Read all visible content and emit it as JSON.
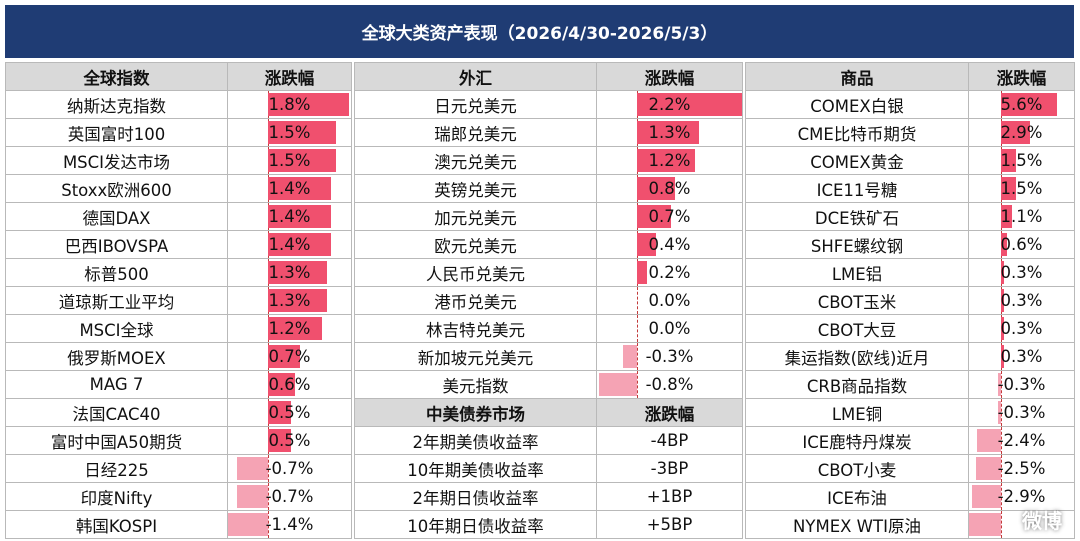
{
  "title": "全球大类资产表现（2026/4/30-2026/5/3）",
  "colors": {
    "header_bg": "#1f3c74",
    "positive_bar": "#f0506e",
    "negative_bar": "#f5a3b4",
    "zero_line": "#c23a3a",
    "col_header_bg": "#d9d9d9"
  },
  "indices": {
    "header": {
      "name": "全球指数",
      "change": "涨跌幅"
    },
    "rows": [
      {
        "name": "纳斯达克指数",
        "change": "1.8%",
        "value": 1.8
      },
      {
        "name": "英国富时100",
        "change": "1.5%",
        "value": 1.5
      },
      {
        "name": "MSCI发达市场",
        "change": "1.5%",
        "value": 1.5
      },
      {
        "name": "Stoxx欧洲600",
        "change": "1.4%",
        "value": 1.4
      },
      {
        "name": "德国DAX",
        "change": "1.4%",
        "value": 1.4
      },
      {
        "name": "巴西IBOVSPA",
        "change": "1.4%",
        "value": 1.4
      },
      {
        "name": "标普500",
        "change": "1.3%",
        "value": 1.3
      },
      {
        "name": "道琼斯工业平均",
        "change": "1.3%",
        "value": 1.3
      },
      {
        "name": "MSCI全球",
        "change": "1.2%",
        "value": 1.2
      },
      {
        "name": "俄罗斯MOEX",
        "change": "0.7%",
        "value": 0.7
      },
      {
        "name": "MAG 7",
        "change": "0.6%",
        "value": 0.6
      },
      {
        "name": "法国CAC40",
        "change": "0.5%",
        "value": 0.5
      },
      {
        "name": "富时中国A50期货",
        "change": "0.5%",
        "value": 0.5
      },
      {
        "name": "日经225",
        "change": "-0.7%",
        "value": -0.7
      },
      {
        "name": "印度Nifty",
        "change": "-0.7%",
        "value": -0.7
      },
      {
        "name": "韩国KOSPI",
        "change": "-1.4%",
        "value": -1.4
      }
    ]
  },
  "fx": {
    "header": {
      "name": "外汇",
      "change": "涨跌幅"
    },
    "rows": [
      {
        "name": "日元兑美元",
        "change": "2.2%",
        "value": 2.2
      },
      {
        "name": "瑞郎兑美元",
        "change": "1.3%",
        "value": 1.3
      },
      {
        "name": "澳元兑美元",
        "change": "1.2%",
        "value": 1.2
      },
      {
        "name": "英镑兑美元",
        "change": "0.8%",
        "value": 0.8
      },
      {
        "name": "加元兑美元",
        "change": "0.7%",
        "value": 0.7
      },
      {
        "name": "欧元兑美元",
        "change": "0.4%",
        "value": 0.4
      },
      {
        "name": "人民币兑美元",
        "change": "0.2%",
        "value": 0.2
      },
      {
        "name": "港币兑美元",
        "change": "0.0%",
        "value": 0.0
      },
      {
        "name": "林吉特兑美元",
        "change": "0.0%",
        "value": 0.0
      },
      {
        "name": "新加坡元兑美元",
        "change": "-0.3%",
        "value": -0.3
      },
      {
        "name": "美元指数",
        "change": "-0.8%",
        "value": -0.8
      }
    ]
  },
  "bonds": {
    "header": {
      "name": "中美债券市场",
      "change": "涨跌幅"
    },
    "rows": [
      {
        "name": "2年期美债收益率",
        "change": "-4BP"
      },
      {
        "name": "10年期美债收益率",
        "change": "-3BP"
      },
      {
        "name": "2年期日债收益率",
        "change": "+1BP"
      },
      {
        "name": "10年期日债收益率",
        "change": "+5BP"
      }
    ]
  },
  "commodities": {
    "header": {
      "name": "商品",
      "change": "涨跌幅"
    },
    "rows": [
      {
        "name": "COMEX白银",
        "change": "5.6%",
        "value": 5.6
      },
      {
        "name": "CME比特币期货",
        "change": "2.9%",
        "value": 2.9
      },
      {
        "name": "COMEX黄金",
        "change": "1.5%",
        "value": 1.5
      },
      {
        "name": "ICE11号糖",
        "change": "1.5%",
        "value": 1.5
      },
      {
        "name": "DCE铁矿石",
        "change": "1.1%",
        "value": 1.1
      },
      {
        "name": "SHFE螺纹钢",
        "change": "0.6%",
        "value": 0.6
      },
      {
        "name": "LME铝",
        "change": "0.3%",
        "value": 0.3
      },
      {
        "name": "CBOT玉米",
        "change": "0.3%",
        "value": 0.3
      },
      {
        "name": "CBOT大豆",
        "change": "0.3%",
        "value": 0.3
      },
      {
        "name": "集运指数(欧线)近月",
        "change": "0.3%",
        "value": 0.3
      },
      {
        "name": "CRB商品指数",
        "change": "-0.3%",
        "value": -0.3
      },
      {
        "name": "LME铜",
        "change": "-0.3%",
        "value": -0.3
      },
      {
        "name": "ICE鹿特丹煤炭",
        "change": "-2.4%",
        "value": -2.4
      },
      {
        "name": "CBOT小麦",
        "change": "-2.5%",
        "value": -2.5
      },
      {
        "name": "ICE布油",
        "change": "-2.9%",
        "value": -2.9
      },
      {
        "name": "NYMEX WTI原油",
        "change": "",
        "value": -3.5
      }
    ]
  },
  "watermark": "微博"
}
